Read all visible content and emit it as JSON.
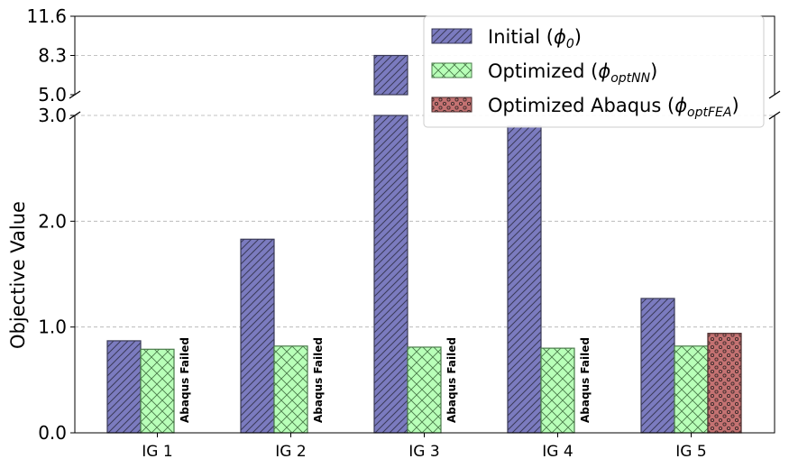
{
  "chart_data": {
    "type": "bar",
    "broken_axis": true,
    "ylabel": "Objective Value",
    "xlabel": "",
    "categories": [
      "IG 1",
      "IG 2",
      "IG 3",
      "IG 4",
      "IG 5"
    ],
    "lower_ylim": [
      0,
      3.0
    ],
    "upper_ylim": [
      5.0,
      11.6
    ],
    "lower_yticks": [
      "0.0",
      "1.0",
      "2.0",
      "3.0"
    ],
    "upper_yticks": [
      "5.0",
      "8.3",
      "11.6"
    ],
    "grid": "horizontal dashed",
    "legend_position": "top-right",
    "series": [
      {
        "name": "Initial (ϕ0)",
        "label_main": "Initial (",
        "label_sym": "ϕ",
        "label_sub": "0",
        "values": [
          0.87,
          1.83,
          8.3,
          2.9,
          1.27
        ],
        "color": "#7b7bbf",
        "hatch": "diagonal"
      },
      {
        "name": "Optimized (ϕoptNN)",
        "label_main": "Optimized (",
        "label_sym": "ϕ",
        "label_sub": "optNN",
        "values": [
          0.79,
          0.82,
          0.81,
          0.8,
          0.82
        ],
        "color": "#b8ffb8",
        "hatch": "cross"
      },
      {
        "name": "Optimized Abaqus (ϕoptFEA)",
        "label_main": "Optimized Abaqus (",
        "label_sym": "ϕ",
        "label_sub": "optFEA",
        "values": [
          null,
          null,
          null,
          null,
          0.94
        ],
        "color": "#c47272",
        "hatch": "dots"
      }
    ],
    "annotations": [
      {
        "category": "IG 1",
        "text": "Abaqus Failed"
      },
      {
        "category": "IG 2",
        "text": "Abaqus Failed"
      },
      {
        "category": "IG 3",
        "text": "Abaqus Failed"
      },
      {
        "category": "IG 4",
        "text": "Abaqus Failed"
      }
    ]
  },
  "colors": {
    "initial": "#7b7bbf",
    "optimized_nn": "#b8ffb8",
    "optimized_fea": "#c47272"
  }
}
